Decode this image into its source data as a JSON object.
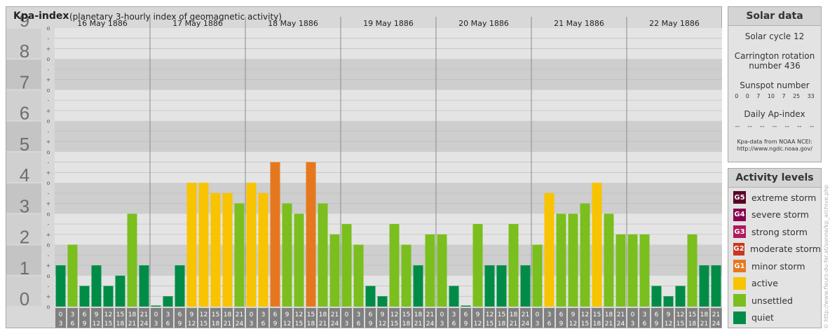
{
  "chart_data": {
    "type": "bar",
    "title": "Kpa-index",
    "subtitle": "(planetary 3-hourly index of geomagnetic activity)",
    "ylim": [
      0,
      9
    ],
    "y_ticks": [
      "0",
      "1",
      "2",
      "3",
      "4",
      "5",
      "6",
      "7",
      "8",
      "9"
    ],
    "sub_ticks": [
      "o",
      "+",
      "-"
    ],
    "days": [
      {
        "date": "16 May 1886",
        "values": [
          1.333,
          2.0,
          0.667,
          1.333,
          0.667,
          1.0,
          3.0,
          1.333
        ]
      },
      {
        "date": "17 May 1886",
        "values": [
          0.0,
          0.333,
          1.333,
          4.0,
          4.0,
          3.667,
          3.667,
          3.333
        ]
      },
      {
        "date": "18 May 1886",
        "values": [
          4.0,
          3.667,
          4.667,
          3.333,
          3.0,
          4.667,
          3.333,
          2.333
        ]
      },
      {
        "date": "19 May 1886",
        "values": [
          2.667,
          2.0,
          0.667,
          0.333,
          2.667,
          2.0,
          1.333,
          2.333
        ]
      },
      {
        "date": "20 May 1886",
        "values": [
          2.333,
          0.667,
          0.0,
          2.667,
          1.333,
          1.333,
          2.667,
          1.333
        ]
      },
      {
        "date": "21 May 1886",
        "values": [
          2.0,
          3.667,
          3.0,
          3.0,
          3.333,
          4.0,
          3.0,
          2.333
        ]
      },
      {
        "date": "22 May 1886",
        "values": [
          2.333,
          2.333,
          0.667,
          0.333,
          0.667,
          2.333,
          1.333,
          1.333
        ]
      }
    ],
    "x_ticks_top": [
      "0",
      "3",
      "6",
      "9",
      "12",
      "15",
      "18",
      "21"
    ],
    "x_ticks_bottom": [
      "3",
      "6",
      "9",
      "12",
      "15",
      "18",
      "21",
      "24"
    ],
    "grid": true
  },
  "colors": {
    "quiet": "#008c47",
    "unsettled": "#7abf1e",
    "active": "#f8c300",
    "minor": "#e5781e",
    "moderate": "#c8371e",
    "strong": "#b0195a",
    "severe": "#8a0050",
    "extreme": "#5a0028"
  },
  "solar": {
    "title": "Solar data",
    "cycle": "Solar cycle 12",
    "rotation_line1": "Carrington rotation",
    "rotation_line2": "number 436",
    "sunspot_title": "Sunspot number",
    "sunspot_values": [
      "0",
      "0",
      "7",
      "10",
      "7",
      "25",
      "33"
    ],
    "ap_title": "Daily Ap-index",
    "ap_values": [
      "--",
      "--",
      "--",
      "--",
      "--",
      "--",
      "--"
    ],
    "source_line1": "Kpa-data from NOAA NCEI:",
    "source_line2": "http://www.ngdc.noaa.gov/"
  },
  "activity": {
    "title": "Activity levels",
    "items": [
      {
        "badge": "G5",
        "label": "extreme storm",
        "color": "#5a0028"
      },
      {
        "badge": "G4",
        "label": "severe storm",
        "color": "#8a0050"
      },
      {
        "badge": "G3",
        "label": "strong storm",
        "color": "#b0195a"
      },
      {
        "badge": "G2",
        "label": "moderate storm",
        "color": "#c8371e"
      },
      {
        "badge": "G1",
        "label": "minor storm",
        "color": "#e5781e"
      },
      {
        "badge": "",
        "label": "active",
        "color": "#f8c300"
      },
      {
        "badge": "",
        "label": "unsettled",
        "color": "#7abf1e"
      },
      {
        "badge": "",
        "label": "quiet",
        "color": "#008c47"
      }
    ]
  },
  "copyright": "© http://www.fleurs-du-fer.at/sonne/kp_archive.php"
}
